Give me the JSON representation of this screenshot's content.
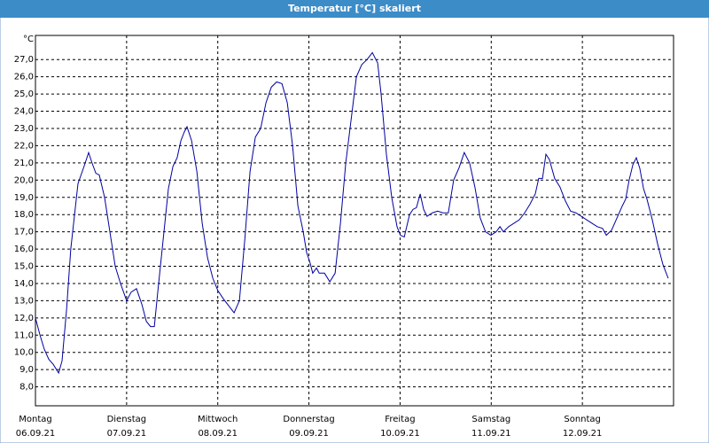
{
  "chart_data": {
    "type": "line",
    "title": "Temperatur [°C] skaliert",
    "y_unit": "°C",
    "xlim": [
      0,
      168
    ],
    "ylim": [
      6.9,
      28.4
    ],
    "grid": true,
    "xticks": [
      {
        "value": 0,
        "label": "Montag"
      },
      {
        "value": 24,
        "label": "Dienstag"
      },
      {
        "value": 48,
        "label": "Mittwoch"
      },
      {
        "value": 72,
        "label": "Donnerstag"
      },
      {
        "value": 96,
        "label": "Freitag"
      },
      {
        "value": 120,
        "label": "Samstag"
      },
      {
        "value": 144,
        "label": "Sonntag"
      }
    ],
    "xtick_dates": [
      "06.09.21",
      "07.09.21",
      "08.09.21",
      "09.09.21",
      "10.09.21",
      "11.09.21",
      "12.09.21"
    ],
    "yticks": [
      {
        "value": 8,
        "label": "8,0"
      },
      {
        "value": 9,
        "label": "9,0"
      },
      {
        "value": 10,
        "label": "10,0"
      },
      {
        "value": 11,
        "label": "11,0"
      },
      {
        "value": 12,
        "label": "12,0"
      },
      {
        "value": 13,
        "label": "13,0"
      },
      {
        "value": 14,
        "label": "14,0"
      },
      {
        "value": 15,
        "label": "15,0"
      },
      {
        "value": 16,
        "label": "16,0"
      },
      {
        "value": 17,
        "label": "17,0"
      },
      {
        "value": 18,
        "label": "18,0"
      },
      {
        "value": 19,
        "label": "19,0"
      },
      {
        "value": 20,
        "label": "20,0"
      },
      {
        "value": 21,
        "label": "21,0"
      },
      {
        "value": 22,
        "label": "22,0"
      },
      {
        "value": 23,
        "label": "23,0"
      },
      {
        "value": 24,
        "label": "24,0"
      },
      {
        "value": 25,
        "label": "25,0"
      },
      {
        "value": 26,
        "label": "26,0"
      },
      {
        "value": 27,
        "label": "27,0"
      }
    ],
    "series": [
      {
        "color": "#0000a0",
        "x": [
          0,
          1.2,
          2.3,
          3.5,
          4.7,
          6.1,
          7.0,
          8.2,
          9.3,
          11.2,
          12.8,
          14.0,
          14.9,
          15.9,
          16.8,
          18.2,
          19.6,
          21.0,
          22.4,
          24.0,
          25.2,
          26.6,
          28.0,
          29.2,
          30.3,
          31.3,
          32.2,
          33.6,
          35.0,
          36.2,
          37.3,
          38.3,
          39.2,
          39.9,
          41.1,
          42.5,
          43.9,
          45.3,
          46.7,
          48.0,
          49.5,
          50.9,
          52.3,
          53.7,
          55.1,
          56.5,
          57.9,
          59.3,
          60.7,
          62.1,
          63.5,
          64.9,
          66.3,
          67.7,
          69.1,
          70.5,
          71.4,
          72.3,
          73.0,
          74.0,
          74.7,
          76.1,
          77.5,
          78.9,
          80.3,
          81.7,
          83.1,
          84.5,
          85.9,
          87.3,
          88.7,
          90.1,
          91.0,
          92.4,
          93.8,
          95.2,
          96.1,
          97.1,
          98.5,
          99.4,
          100.3,
          101.3,
          102.2,
          103.1,
          104.5,
          105.9,
          107.3,
          108.7,
          110.1,
          111.5,
          112.9,
          114.3,
          115.7,
          117.1,
          118.5,
          119.9,
          121.3,
          122.3,
          123.2,
          124.6,
          126.0,
          127.4,
          128.8,
          130.2,
          131.6,
          132.5,
          133.5,
          134.4,
          135.3,
          136.7,
          138.1,
          139.5,
          140.9,
          142.3,
          143.7,
          145.1,
          146.5,
          147.9,
          149.3,
          150.3,
          151.7,
          153.1,
          154.5,
          155.4,
          156.3,
          157.3,
          158.2,
          159.1,
          160.1,
          161.0,
          162.4,
          163.8,
          165.2,
          166.6
        ],
        "values": [
          12.0,
          11.0,
          10.2,
          9.6,
          9.3,
          8.8,
          9.5,
          12.5,
          16.0,
          19.8,
          20.8,
          21.6,
          21.0,
          20.4,
          20.3,
          19.0,
          17.0,
          15.0,
          14.0,
          13.0,
          13.5,
          13.7,
          12.8,
          11.8,
          11.5,
          11.5,
          13.5,
          16.5,
          19.5,
          20.8,
          21.3,
          22.3,
          22.8,
          23.1,
          22.3,
          20.5,
          17.5,
          15.5,
          14.3,
          13.6,
          13.1,
          12.7,
          12.3,
          13.0,
          16.5,
          20.5,
          22.5,
          23.0,
          24.5,
          25.4,
          25.7,
          25.6,
          24.5,
          22.0,
          18.5,
          17.0,
          15.8,
          15.2,
          14.6,
          14.9,
          14.6,
          14.6,
          14.1,
          14.6,
          17.5,
          21.0,
          23.5,
          26.0,
          26.7,
          27.0,
          27.4,
          26.8,
          25.0,
          21.5,
          19.0,
          17.3,
          16.8,
          16.7,
          18.0,
          18.3,
          18.4,
          19.2,
          18.3,
          17.9,
          18.1,
          18.2,
          18.1,
          18.1,
          20.0,
          20.7,
          21.6,
          21.0,
          19.6,
          17.8,
          17.0,
          16.8,
          17.0,
          17.3,
          17.0,
          17.3,
          17.5,
          17.7,
          18.1,
          18.6,
          19.2,
          20.1,
          20.1,
          21.5,
          21.2,
          20.1,
          19.6,
          18.8,
          18.2,
          18.1,
          17.9,
          17.7,
          17.5,
          17.3,
          17.2,
          16.8,
          17.1,
          17.8,
          18.5,
          18.9,
          20.0,
          20.9,
          21.3,
          20.7,
          19.5,
          18.9,
          17.7,
          16.3,
          15.1,
          14.3
        ]
      }
    ]
  }
}
